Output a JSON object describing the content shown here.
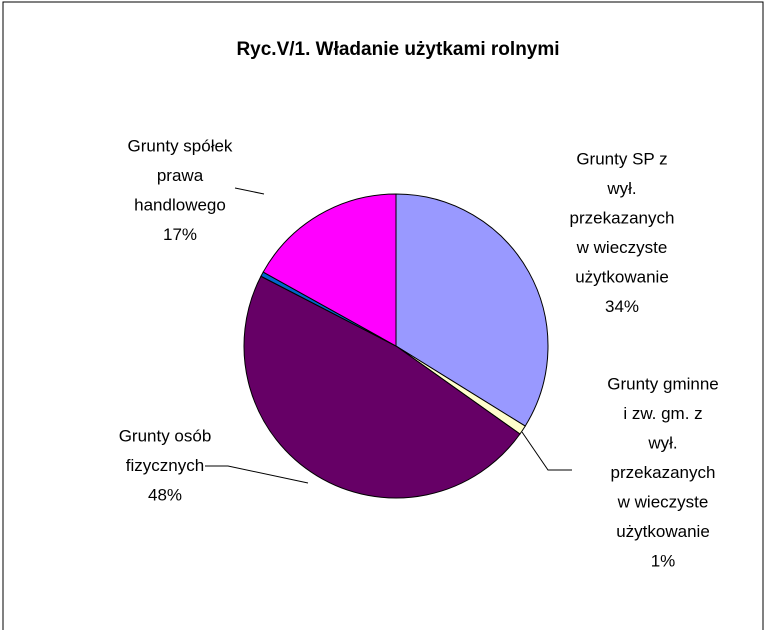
{
  "chart_data": {
    "type": "pie",
    "title": "Ryc.V/1. Władanie użytkami rolnymi",
    "categories": [
      [
        "Grunty SP z",
        "wył.",
        "przekazanych",
        "w wieczyste",
        "użytkowanie"
      ],
      [
        "Grunty gminne",
        "i zw. gm. z",
        "wył.",
        "przekazanych",
        "w wieczyste",
        "użytkowanie"
      ],
      [
        "Grunty osób",
        "fizycznych"
      ],
      null,
      [
        "Grunty spółek",
        "prawa",
        "handlowego"
      ]
    ],
    "values": [
      34,
      1,
      48,
      0.5,
      17
    ],
    "value_labels": [
      "34%",
      "1%",
      "48%",
      null,
      "17%"
    ],
    "colors": [
      "#9999ff",
      "#ffffcc",
      "#660066",
      "#0066cc",
      "#ff00ff"
    ]
  }
}
